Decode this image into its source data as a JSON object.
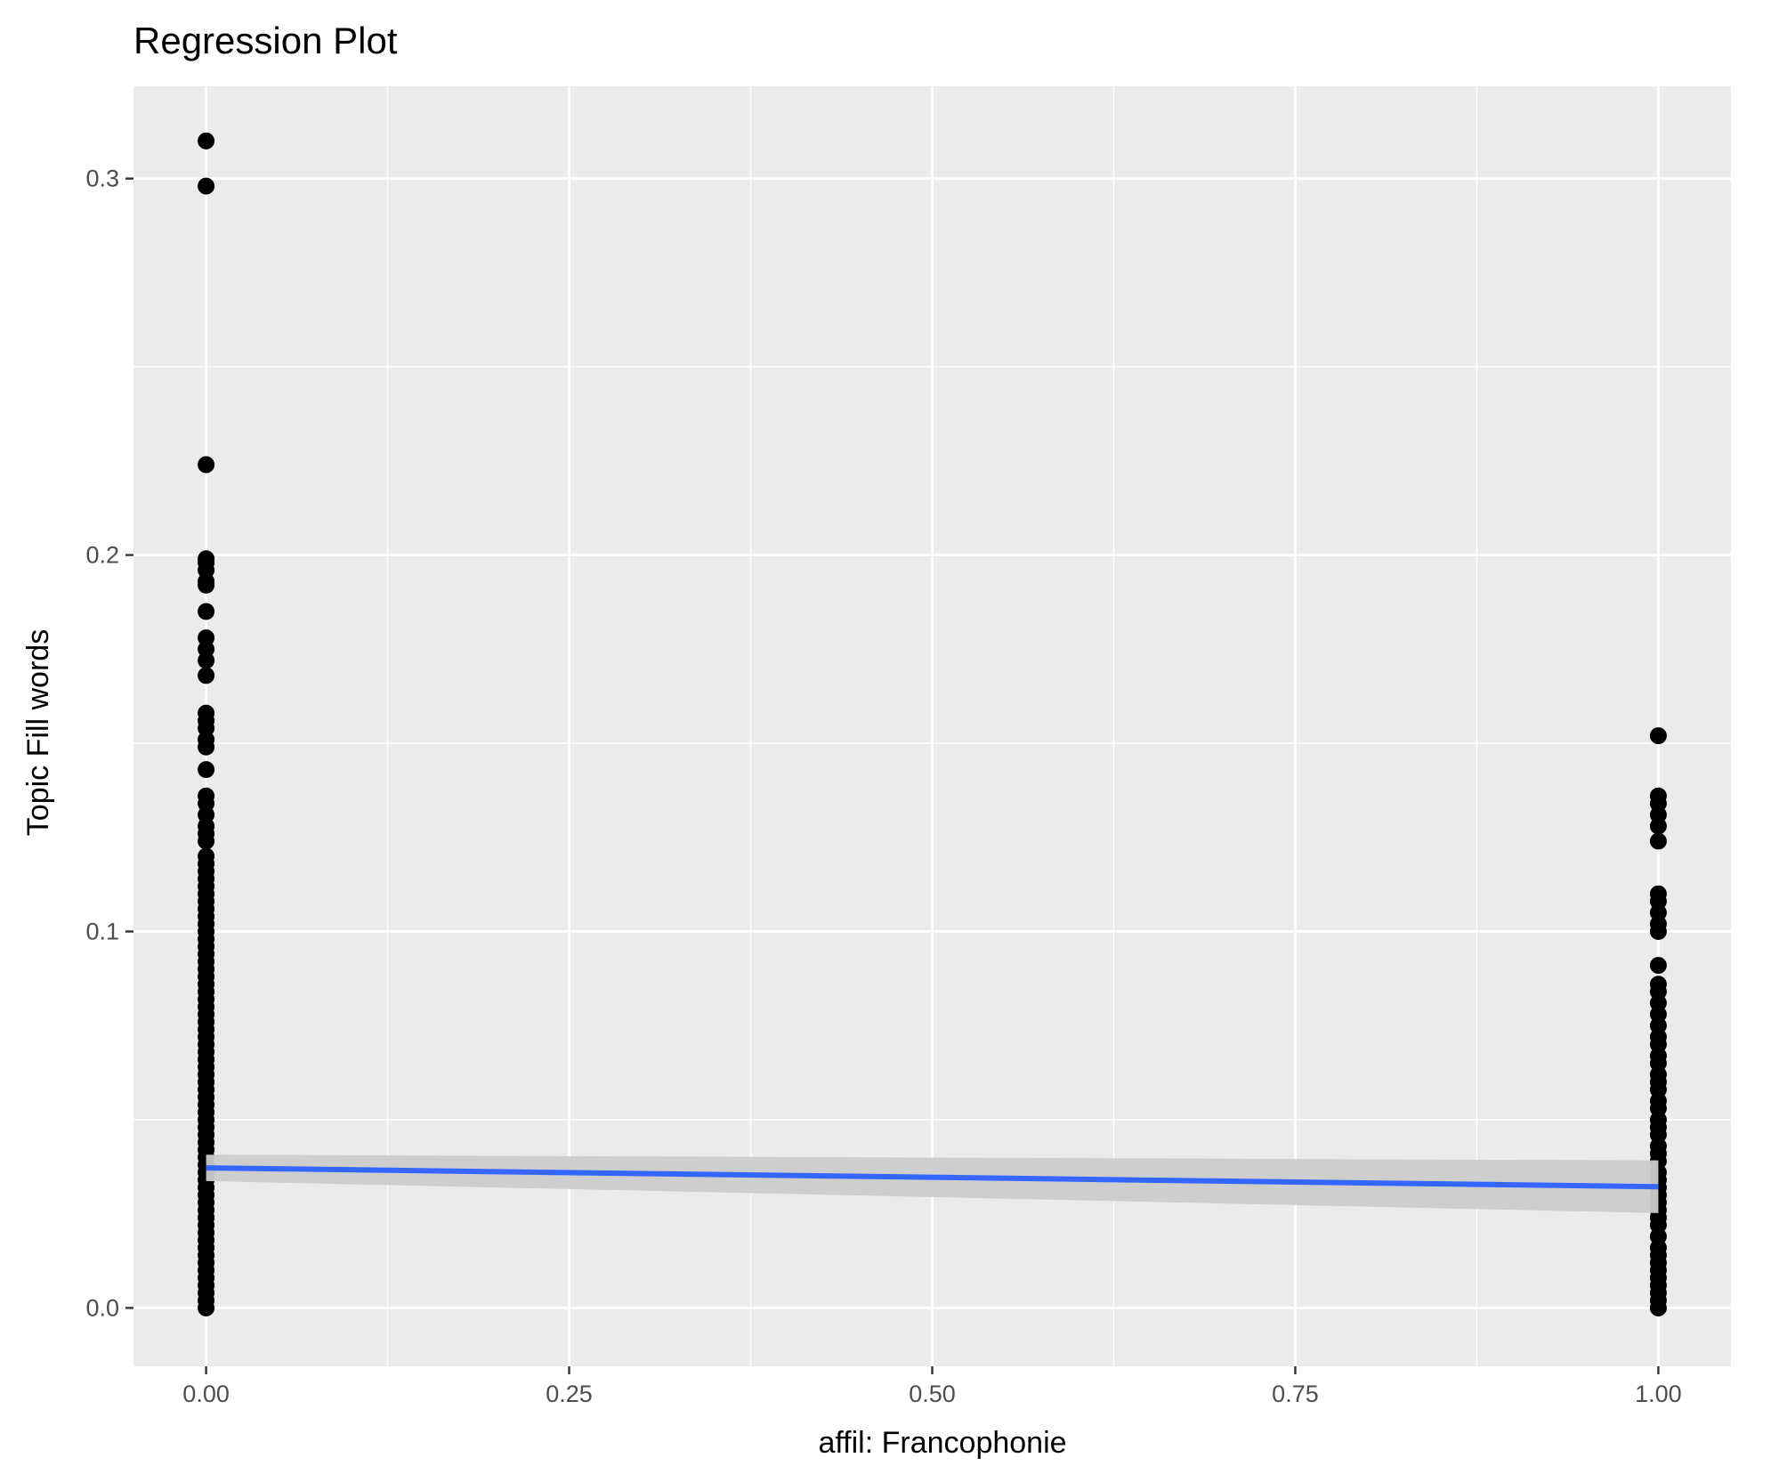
{
  "chart_data": {
    "type": "scatter",
    "title": "Regression Plot",
    "xlabel": "affil: Francophonie",
    "ylabel": "Topic Fill words",
    "xlim": [
      -0.05,
      1.05
    ],
    "ylim": [
      -0.0155,
      0.3245
    ],
    "x_ticks": [
      {
        "value": 0.0,
        "label": "0.00"
      },
      {
        "value": 0.25,
        "label": "0.25"
      },
      {
        "value": 0.5,
        "label": "0.50"
      },
      {
        "value": 0.75,
        "label": "0.75"
      },
      {
        "value": 1.0,
        "label": "1.00"
      }
    ],
    "y_ticks": [
      {
        "value": 0.0,
        "label": "0.0"
      },
      {
        "value": 0.1,
        "label": "0.1"
      },
      {
        "value": 0.2,
        "label": "0.2"
      },
      {
        "value": 0.3,
        "label": "0.3"
      }
    ],
    "x_minor_gridlines": [
      0.125,
      0.375,
      0.625,
      0.875
    ],
    "y_minor_gridlines": [
      0.05,
      0.15,
      0.25
    ],
    "grid": true,
    "legend": "none",
    "points": {
      "name": "",
      "color": "#000000",
      "series": [
        {
          "x": 0,
          "y": [
            0.31,
            0.298,
            0.224,
            0.199,
            0.198,
            0.196,
            0.193,
            0.192,
            0.185,
            0.178,
            0.175,
            0.172,
            0.168,
            0.158,
            0.156,
            0.154,
            0.151,
            0.149,
            0.143,
            0.136,
            0.134,
            0.131,
            0.128,
            0.126,
            0.124,
            0.12,
            0.118,
            0.116,
            0.114,
            0.112,
            0.11,
            0.108,
            0.106,
            0.104,
            0.102,
            0.1,
            0.098,
            0.096,
            0.094,
            0.092,
            0.09,
            0.088,
            0.086,
            0.084,
            0.082,
            0.08,
            0.078,
            0.076,
            0.074,
            0.072,
            0.07,
            0.068,
            0.066,
            0.064,
            0.062,
            0.06,
            0.058,
            0.056,
            0.054,
            0.052,
            0.05,
            0.048,
            0.046,
            0.044,
            0.042,
            0.04,
            0.038,
            0.036,
            0.034,
            0.032,
            0.03,
            0.028,
            0.026,
            0.024,
            0.022,
            0.02,
            0.018,
            0.016,
            0.014,
            0.012,
            0.01,
            0.008,
            0.006,
            0.004,
            0.002,
            0.0
          ]
        },
        {
          "x": 1,
          "y": [
            0.152,
            0.136,
            0.134,
            0.131,
            0.128,
            0.124,
            0.11,
            0.108,
            0.105,
            0.102,
            0.1,
            0.091,
            0.086,
            0.084,
            0.081,
            0.078,
            0.075,
            0.072,
            0.07,
            0.067,
            0.065,
            0.062,
            0.06,
            0.058,
            0.055,
            0.053,
            0.05,
            0.048,
            0.046,
            0.043,
            0.041,
            0.039,
            0.036,
            0.034,
            0.032,
            0.03,
            0.028,
            0.026,
            0.024,
            0.022,
            0.019,
            0.016,
            0.014,
            0.012,
            0.01,
            0.008,
            0.006,
            0.004,
            0.002,
            0.0
          ]
        }
      ]
    },
    "regression": {
      "color": "#3366FF",
      "band_color": "#cccccc",
      "x": [
        0,
        1
      ],
      "y": [
        0.0372,
        0.0322
      ],
      "ci_lower": [
        0.0337,
        0.0252
      ],
      "ci_upper": [
        0.0407,
        0.0392
      ]
    }
  },
  "colors": {
    "panel_background": "#ebebeb",
    "gridline": "#ffffff",
    "tick_text": "#4d4d4d",
    "tick_mark": "#333333"
  }
}
